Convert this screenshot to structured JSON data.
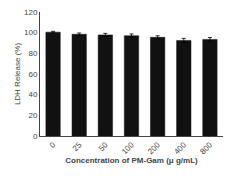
{
  "chart_data": {
    "type": "bar",
    "categories": [
      "0",
      "25",
      "50",
      "100",
      "200",
      "400",
      "800"
    ],
    "values": [
      100.5,
      98.5,
      97.8,
      97.0,
      95.5,
      92.5,
      93.5
    ],
    "errors": [
      0.8,
      1.2,
      1.5,
      1.8,
      1.5,
      2.0,
      1.8
    ],
    "color": "#111111",
    "ylim": [
      0,
      120
    ],
    "yticks": [
      0,
      20,
      40,
      60,
      80,
      100,
      120
    ],
    "ylabel": "LDH Release (%)",
    "xlabel": "Concentration of PM-Gam (μ g/mL)",
    "grid": false
  }
}
